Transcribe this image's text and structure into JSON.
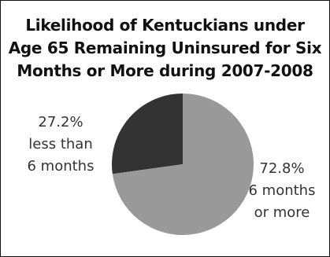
{
  "chart_data": {
    "type": "pie",
    "title_lines": [
      "Likelihood of Kentuckians under",
      "Age 65 Remaining Uninsured for Six",
      "Months or More during 2007-2008"
    ],
    "slices": [
      {
        "value": 27.2,
        "percent_label": "27.2%",
        "label_lines": [
          "less than",
          "6 months"
        ],
        "color": "#333333"
      },
      {
        "value": 72.8,
        "percent_label": "72.8%",
        "label_lines": [
          "6 months",
          "or more"
        ],
        "color": "#999999"
      }
    ]
  }
}
